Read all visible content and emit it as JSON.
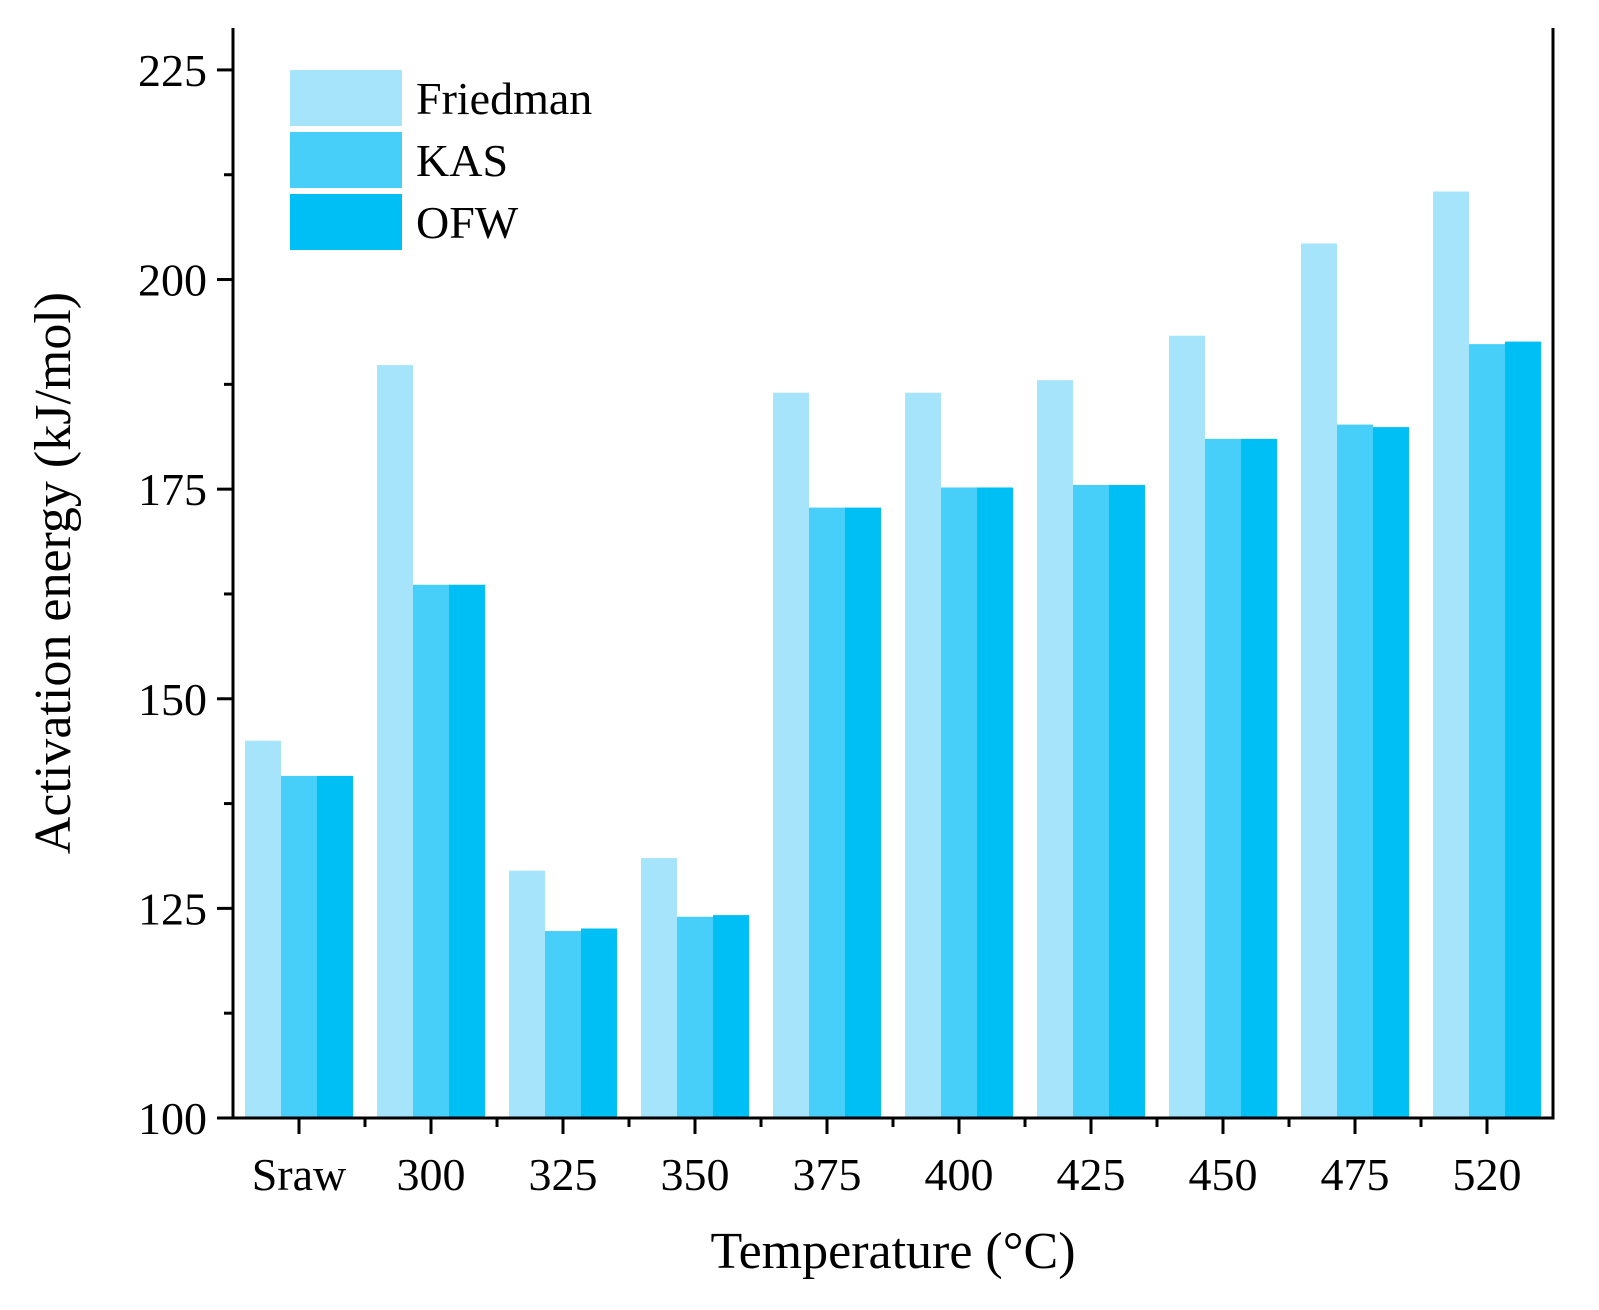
{
  "chart_data": {
    "type": "bar",
    "title": "",
    "xlabel": "Temperature (°C)",
    "ylabel": "Activation energy (kJ/mol)",
    "ylim": [
      100,
      230
    ],
    "y_major_ticks": [
      100,
      125,
      150,
      175,
      200,
      225
    ],
    "y_minor_ticks": [
      112.5,
      137.5,
      162.5,
      187.5,
      212.5
    ],
    "categories": [
      "Sraw",
      "300",
      "325",
      "350",
      "375",
      "400",
      "425",
      "450",
      "475",
      "520"
    ],
    "series": [
      {
        "name": "Friedman",
        "color": "#a6e4fb",
        "values": [
          145.0,
          189.8,
          129.5,
          131.0,
          186.5,
          186.5,
          188.0,
          193.3,
          204.3,
          210.5
        ]
      },
      {
        "name": "KAS",
        "color": "#47cff9",
        "values": [
          140.8,
          163.6,
          122.3,
          124.0,
          172.8,
          175.2,
          175.5,
          181.0,
          182.7,
          192.3
        ]
      },
      {
        "name": "OFW",
        "color": "#00bff5",
        "values": [
          140.8,
          163.6,
          122.6,
          124.2,
          172.8,
          175.2,
          175.5,
          181.0,
          182.4,
          192.6
        ]
      }
    ],
    "legend_position": "top-left",
    "grid": false
  }
}
